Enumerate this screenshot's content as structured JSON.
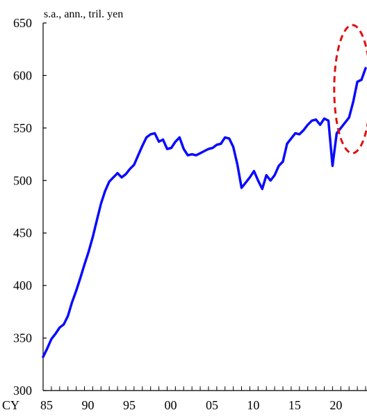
{
  "chart_data": {
    "type": "line",
    "title": "",
    "unit_label": "s.a., ann., tril. yen",
    "xlabel": "",
    "ylabel": "",
    "x_prefix": "CY",
    "xlim": [
      1985,
      2024.0
    ],
    "ylim": [
      300,
      650
    ],
    "y_ticks": [
      300,
      350,
      400,
      450,
      500,
      550,
      600,
      650
    ],
    "x_tick_labels": [
      {
        "x": 1985,
        "label": "85"
      },
      {
        "x": 1990,
        "label": "90"
      },
      {
        "x": 1995,
        "label": "95"
      },
      {
        "x": 2000,
        "label": "00"
      },
      {
        "x": 2005,
        "label": "05"
      },
      {
        "x": 2010,
        "label": "10"
      },
      {
        "x": 2015,
        "label": "15"
      },
      {
        "x": 2020,
        "label": "20"
      }
    ],
    "grid": false,
    "legend": "none",
    "line_color": "#0a0aff",
    "highlight_color": "#e01010",
    "highlight": {
      "x_range": [
        2020.2,
        2024.6
      ],
      "y_range": [
        526,
        648
      ]
    },
    "series": [
      {
        "name": "",
        "points": [
          [
            1985.0,
            332
          ],
          [
            1985.5,
            340
          ],
          [
            1986.0,
            349
          ],
          [
            1986.5,
            354
          ],
          [
            1987.0,
            360
          ],
          [
            1987.5,
            363
          ],
          [
            1988.0,
            371
          ],
          [
            1988.5,
            384
          ],
          [
            1989.0,
            395
          ],
          [
            1989.5,
            407
          ],
          [
            1990.0,
            420
          ],
          [
            1990.5,
            432
          ],
          [
            1991.0,
            446
          ],
          [
            1991.5,
            462
          ],
          [
            1992.0,
            478
          ],
          [
            1992.5,
            490
          ],
          [
            1993.0,
            499
          ],
          [
            1993.5,
            503
          ],
          [
            1994.0,
            507
          ],
          [
            1994.5,
            503
          ],
          [
            1995.0,
            506
          ],
          [
            1995.5,
            511
          ],
          [
            1996.0,
            515
          ],
          [
            1996.5,
            524
          ],
          [
            1997.0,
            533
          ],
          [
            1997.5,
            541
          ],
          [
            1998.0,
            544
          ],
          [
            1998.5,
            545
          ],
          [
            1999.0,
            537
          ],
          [
            1999.5,
            539
          ],
          [
            2000.0,
            530
          ],
          [
            2000.5,
            531
          ],
          [
            2001.0,
            537
          ],
          [
            2001.5,
            541
          ],
          [
            2002.0,
            530
          ],
          [
            2002.5,
            524
          ],
          [
            2003.0,
            525
          ],
          [
            2003.5,
            524
          ],
          [
            2004.0,
            526
          ],
          [
            2004.5,
            528
          ],
          [
            2005.0,
            530
          ],
          [
            2005.5,
            531
          ],
          [
            2006.0,
            534
          ],
          [
            2006.5,
            535
          ],
          [
            2007.0,
            541
          ],
          [
            2007.5,
            540
          ],
          [
            2008.0,
            532
          ],
          [
            2008.5,
            515
          ],
          [
            2009.0,
            493
          ],
          [
            2009.5,
            498
          ],
          [
            2010.0,
            503
          ],
          [
            2010.5,
            509
          ],
          [
            2011.0,
            500
          ],
          [
            2011.5,
            492
          ],
          [
            2012.0,
            505
          ],
          [
            2012.5,
            500
          ],
          [
            2013.0,
            505
          ],
          [
            2013.5,
            514
          ],
          [
            2014.0,
            518
          ],
          [
            2014.5,
            535
          ],
          [
            2015.0,
            540
          ],
          [
            2015.5,
            545
          ],
          [
            2016.0,
            544
          ],
          [
            2016.5,
            548
          ],
          [
            2017.0,
            553
          ],
          [
            2017.5,
            557
          ],
          [
            2018.0,
            558
          ],
          [
            2018.5,
            553
          ],
          [
            2019.0,
            559
          ],
          [
            2019.5,
            557
          ],
          [
            2020.0,
            514
          ],
          [
            2020.5,
            545
          ],
          [
            2021.0,
            550
          ],
          [
            2021.5,
            555
          ],
          [
            2022.0,
            560
          ],
          [
            2022.5,
            575
          ],
          [
            2023.0,
            594
          ],
          [
            2023.5,
            596
          ],
          [
            2024.0,
            607
          ]
        ]
      }
    ]
  }
}
